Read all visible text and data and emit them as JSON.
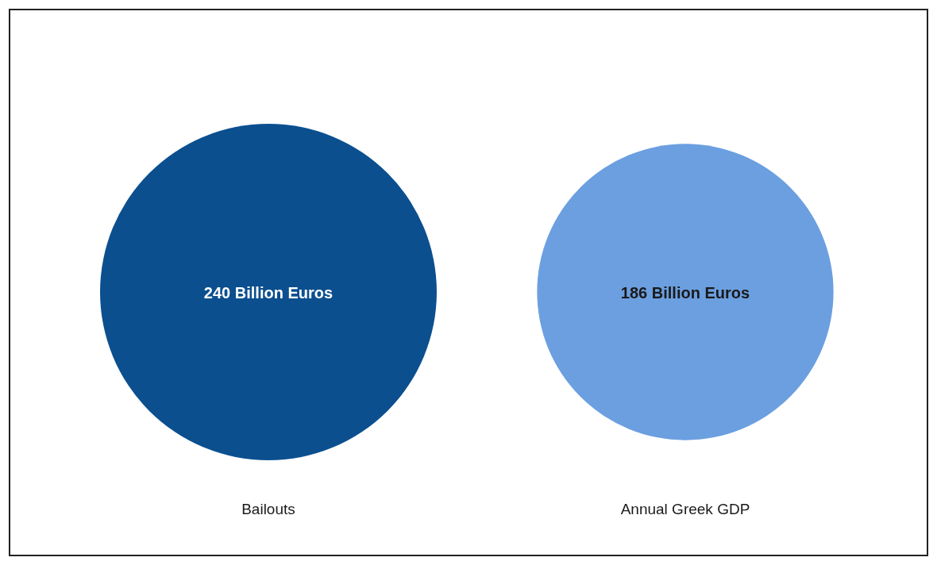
{
  "chart_data": {
    "type": "other",
    "categories": [
      "Bailouts",
      "Annual Greek GDP"
    ],
    "values": [
      240,
      186
    ],
    "value_labels": [
      "240 Billion Euros",
      "186 Billion Euros"
    ],
    "colors": [
      "#0b4f8f",
      "#6b9fe0"
    ]
  }
}
